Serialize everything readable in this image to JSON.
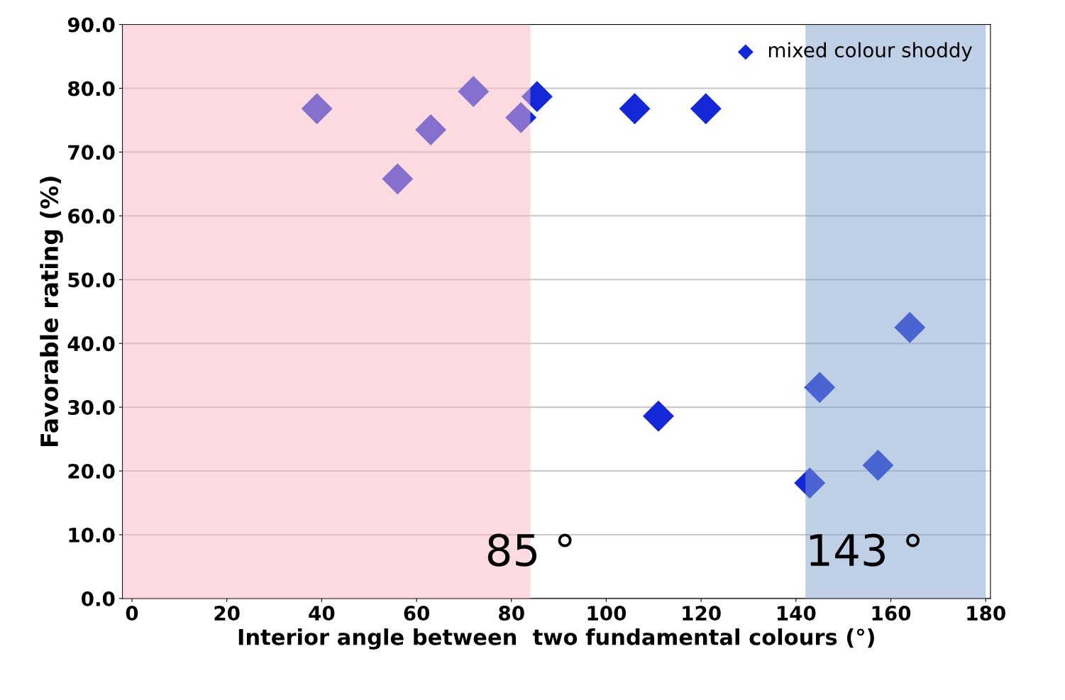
{
  "chart_data": {
    "type": "scatter",
    "xlabel": "Interior angle between  two fundamental colours (°)",
    "ylabel": "Favorable rating (%)",
    "x": [
      39,
      56,
      63,
      72,
      82,
      85.4,
      106,
      121,
      111,
      142.9,
      145,
      157.3,
      164
    ],
    "series": [
      {
        "name": "mixed colour shoddy",
        "color": "#1428d8",
        "values": [
          76.8,
          65.8,
          73.5,
          79.5,
          75.4,
          78.7,
          76.8,
          76.8,
          28.6,
          18.1,
          33.1,
          20.9,
          42.5
        ]
      }
    ],
    "xlim": [
      -2,
      181
    ],
    "xticks": [
      0,
      20,
      40,
      60,
      80,
      100,
      120,
      140,
      160,
      180
    ],
    "ylim": [
      0,
      90
    ],
    "yticks": [
      {
        "value": 0,
        "label": "0.0"
      },
      {
        "value": 10,
        "label": "10.0"
      },
      {
        "value": 20,
        "label": "20.0"
      },
      {
        "value": 30,
        "label": "30.0"
      },
      {
        "value": 40,
        "label": "40.0"
      },
      {
        "value": 50,
        "label": "50.0"
      },
      {
        "value": 60,
        "label": "60.0"
      },
      {
        "value": 70,
        "label": "70.0"
      },
      {
        "value": 80,
        "label": "80.0"
      },
      {
        "value": 90,
        "label": "90.0"
      }
    ],
    "bands": [
      {
        "axis": "x",
        "from": -2,
        "to": 84,
        "label": "85 °",
        "color": "#f7b8c2"
      },
      {
        "axis": "x",
        "from": 142,
        "to": 180,
        "label": "143 °",
        "color": "#7f9fcc"
      }
    ],
    "grid": "y",
    "legend": "top right",
    "marker": "diamond"
  }
}
